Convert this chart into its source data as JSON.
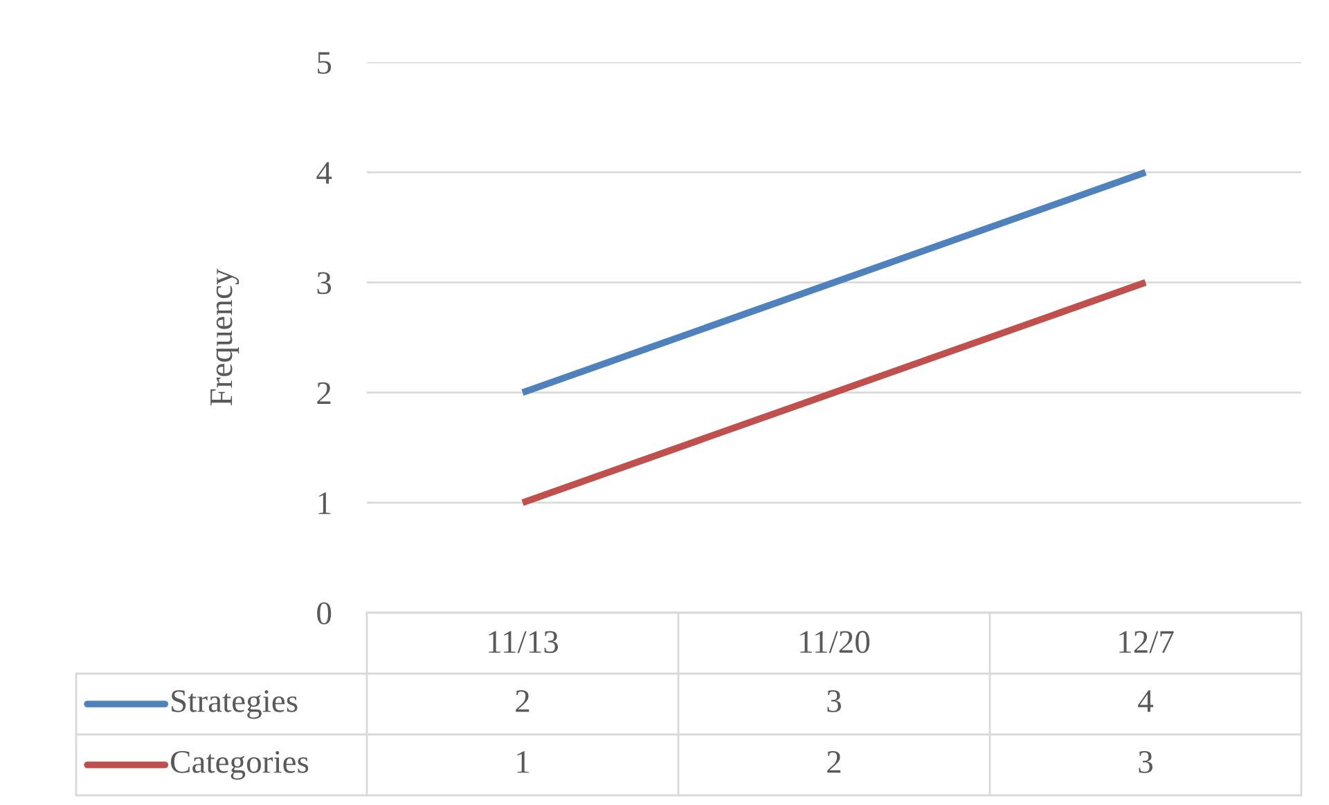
{
  "chart_data": {
    "type": "line",
    "ylabel": "Frequency",
    "categories": [
      "11/13",
      "11/20",
      "12/7"
    ],
    "series": [
      {
        "name": "Strategies",
        "color": "#4f81bd",
        "values": [
          2,
          3,
          4
        ]
      },
      {
        "name": "Categories",
        "color": "#c0504d",
        "values": [
          1,
          2,
          3
        ]
      }
    ],
    "ylim": [
      0,
      5
    ],
    "yticks": [
      0,
      1,
      2,
      3,
      4,
      5
    ],
    "grid": "y",
    "legend": "bottom",
    "data_labels": true,
    "marker": "none",
    "line_style": "solid"
  }
}
